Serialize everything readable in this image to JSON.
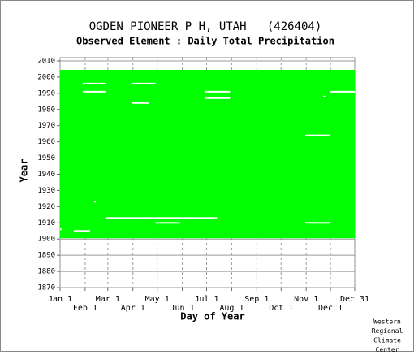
{
  "chart_data": {
    "type": "coverage",
    "title": "OGDEN PIONEER P H, UTAH   (426404)",
    "subtitle": "Observed Element : Daily Total Precipitation",
    "xlabel": "Day of Year",
    "ylabel": "Year",
    "footer": [
      "Western",
      "Regional",
      "Climate",
      "Center"
    ],
    "color": "#00ff00",
    "first_year": 1901,
    "last_year": 2004,
    "xlim": [
      1,
      365
    ],
    "ylim": [
      1870,
      2012
    ],
    "xticks": [
      {
        "value": 1,
        "label": "Jan 1"
      },
      {
        "value": 32,
        "label": "Feb 1"
      },
      {
        "value": 60,
        "label": "Mar 1"
      },
      {
        "value": 91,
        "label": "Apr 1"
      },
      {
        "value": 121,
        "label": "May 1"
      },
      {
        "value": 152,
        "label": "Jun 1"
      },
      {
        "value": 182,
        "label": "Jul 1"
      },
      {
        "value": 213,
        "label": "Aug 1"
      },
      {
        "value": 244,
        "label": "Sep 1"
      },
      {
        "value": 274,
        "label": "Oct 1"
      },
      {
        "value": 305,
        "label": "Nov 1"
      },
      {
        "value": 335,
        "label": "Dec 1"
      },
      {
        "value": 365,
        "label": "Dec 31"
      }
    ],
    "yticks": [
      1870,
      1880,
      1890,
      1900,
      1910,
      1920,
      1930,
      1940,
      1950,
      1960,
      1970,
      1980,
      1990,
      2000,
      2010
    ],
    "grid": true,
    "gaps": [
      {
        "year": 1996,
        "start": 29,
        "end": 57
      },
      {
        "year": 1991,
        "start": 29,
        "end": 57
      },
      {
        "year": 1996,
        "start": 90,
        "end": 119
      },
      {
        "year": 1984,
        "start": 90,
        "end": 111
      },
      {
        "year": 1991,
        "start": 180,
        "end": 211
      },
      {
        "year": 1987,
        "start": 180,
        "end": 211
      },
      {
        "year": 1991,
        "start": 335,
        "end": 365
      },
      {
        "year": 1964,
        "start": 304,
        "end": 334
      },
      {
        "year": 1988,
        "start": 326,
        "end": 329
      },
      {
        "year": 1923,
        "start": 43,
        "end": 45
      },
      {
        "year": 1913,
        "start": 57,
        "end": 195
      },
      {
        "year": 1910,
        "start": 119,
        "end": 149
      },
      {
        "year": 1910,
        "start": 304,
        "end": 334
      },
      {
        "year": 1905,
        "start": 18,
        "end": 38
      },
      {
        "year": 1906,
        "start": 1,
        "end": 3
      }
    ]
  }
}
